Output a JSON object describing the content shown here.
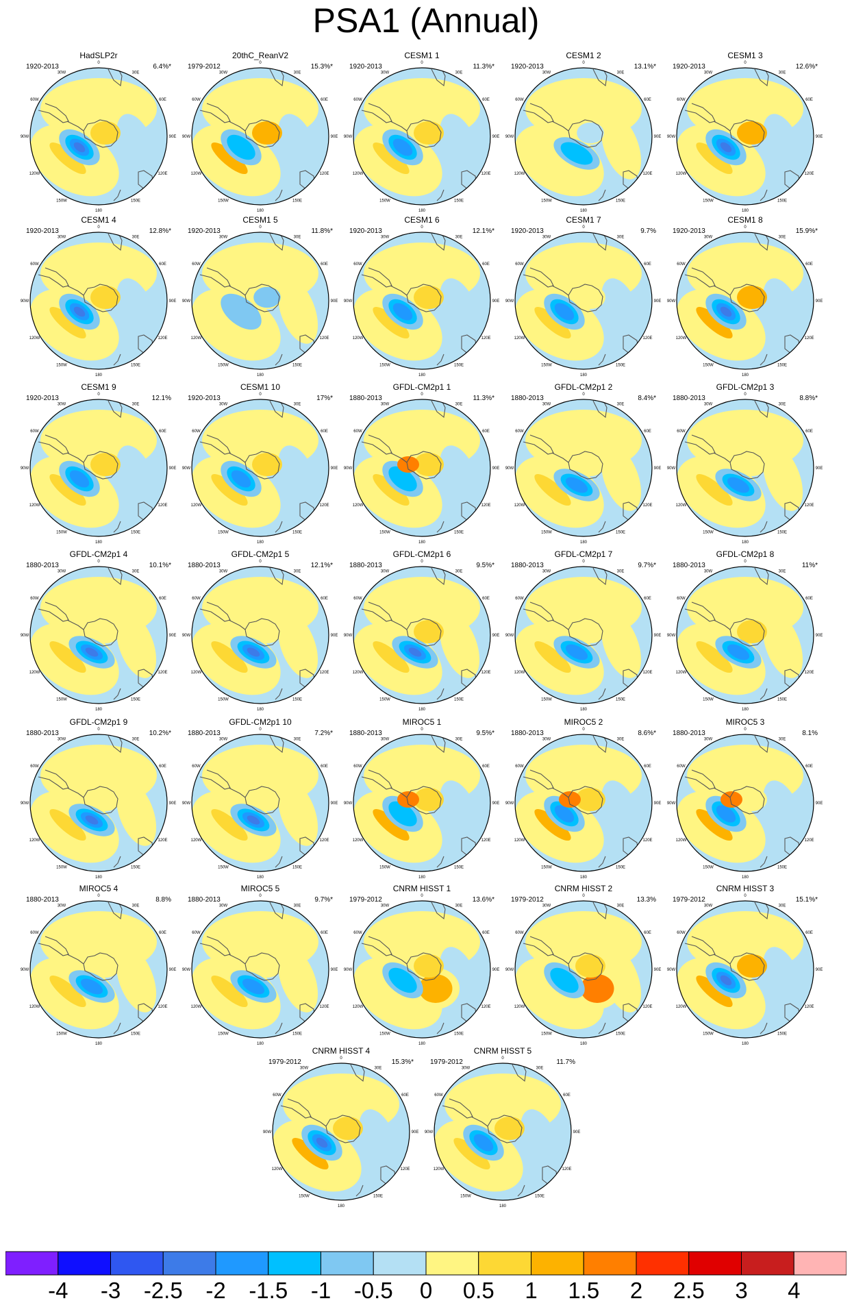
{
  "title": "PSA1 (Annual)",
  "colors": {
    "land_outline": "#555555",
    "map_border": "#000000"
  },
  "map_labels": {
    "lon_top": "0",
    "lon_30w": "30W",
    "lon_30e": "30E",
    "lon_60w": "60W",
    "lon_60e": "60E",
    "lon_90w": "90W",
    "lon_90e": "90E",
    "lon_120w": "120W",
    "lon_120e": "120E",
    "lon_150w": "150W",
    "lon_150e": "150E",
    "lon_bottom": "180"
  },
  "colorbar": {
    "colors": [
      "#7f1fff",
      "#0f0fff",
      "#2f57f1",
      "#3d7be8",
      "#1f99ff",
      "#00c0ff",
      "#7fc8f2",
      "#b4e0f4",
      "#fff582",
      "#fdd834",
      "#fdb200",
      "#ff7f00",
      "#ff3000",
      "#e00000",
      "#c81e1e",
      "#ffb4b4"
    ],
    "labels": [
      "-4",
      "-3",
      "-2.5",
      "-2",
      "-1.5",
      "-1",
      "-0.5",
      "0",
      "0.5",
      "1",
      "1.5",
      "2",
      "2.5",
      "3",
      "4"
    ]
  },
  "panels": [
    {
      "name": "HadSLP2r",
      "period": "1920-2013",
      "pct": "6.4%*",
      "pattern": [
        0,
        -2,
        0.8,
        0.7
      ]
    },
    {
      "name": "20thC_ReanV2",
      "period": "1979-2012",
      "pct": "15.3%*",
      "pattern": [
        0,
        -1.2,
        1.2,
        1.4
      ]
    },
    {
      "name": "CESM1 1",
      "period": "1920-2013",
      "pct": "11.3%*",
      "pattern": [
        0,
        -1.8,
        0.8,
        0.8
      ]
    },
    {
      "name": "CESM1 2",
      "period": "1920-2013",
      "pct": "13.1%*",
      "pattern": [
        1,
        -1.1,
        -0.3,
        -0.5
      ]
    },
    {
      "name": "CESM1 3",
      "period": "1920-2013",
      "pct": "12.6%*",
      "pattern": [
        0,
        -2,
        0.9,
        1.2
      ]
    },
    {
      "name": "CESM1 4",
      "period": "1920-2013",
      "pct": "12.8%*",
      "pattern": [
        0,
        -2,
        0.9,
        0.7
      ]
    },
    {
      "name": "CESM1 5",
      "period": "1920-2013",
      "pct": "11.8%*",
      "pattern": [
        3,
        -0.6,
        -0.4,
        -0.6
      ]
    },
    {
      "name": "CESM1 6",
      "period": "1920-2013",
      "pct": "12.1%*",
      "pattern": [
        0,
        -1.8,
        0.9,
        0.9
      ]
    },
    {
      "name": "CESM1 7",
      "period": "1920-2013",
      "pct": "9.7%",
      "pattern": [
        0,
        -1.8,
        0.6,
        0.3
      ]
    },
    {
      "name": "CESM1 8",
      "period": "1920-2013",
      "pct": "15.9%*",
      "pattern": [
        0,
        -2,
        1,
        1
      ]
    },
    {
      "name": "CESM1 9",
      "period": "1920-2013",
      "pct": "12.1%",
      "pattern": [
        0,
        -1.6,
        0.8,
        0.7
      ]
    },
    {
      "name": "CESM1 10",
      "period": "1920-2013",
      "pct": "17%*",
      "pattern": [
        0,
        -1.6,
        0.9,
        0.9
      ]
    },
    {
      "name": "GFDL-CM2p1 1",
      "period": "1880-2013",
      "pct": "11.3%*",
      "pattern": [
        2,
        -1.3,
        0.9,
        0.6
      ]
    },
    {
      "name": "GFDL-CM2p1 2",
      "period": "1880-2013",
      "pct": "8.4%*",
      "pattern": [
        1,
        -1.7,
        0.5,
        0.3
      ]
    },
    {
      "name": "GFDL-CM2p1 3",
      "period": "1880-2013",
      "pct": "8.8%*",
      "pattern": [
        1,
        -1.6,
        0.6,
        0.4
      ]
    },
    {
      "name": "GFDL-CM2p1 4",
      "period": "1880-2013",
      "pct": "10.1%*",
      "pattern": [
        1,
        -2.2,
        0.5,
        0.4
      ]
    },
    {
      "name": "GFDL-CM2p1 5",
      "period": "1880-2013",
      "pct": "12.1%*",
      "pattern": [
        1,
        -2,
        0.6,
        0.3
      ]
    },
    {
      "name": "GFDL-CM2p1 6",
      "period": "1880-2013",
      "pct": "9.5%*",
      "pattern": [
        1,
        -2.3,
        0.6,
        0.6
      ]
    },
    {
      "name": "GFDL-CM2p1 7",
      "period": "1880-2013",
      "pct": "9.7%*",
      "pattern": [
        1,
        -1.9,
        0.5,
        0.3
      ]
    },
    {
      "name": "GFDL-CM2p1 8",
      "period": "1880-2013",
      "pct": "11%*",
      "pattern": [
        1,
        -1.9,
        0.7,
        0.5
      ]
    },
    {
      "name": "GFDL-CM2p1 9",
      "period": "1880-2013",
      "pct": "10.2%*",
      "pattern": [
        1,
        -2.3,
        0.5,
        0.3
      ]
    },
    {
      "name": "GFDL-CM2p1 10",
      "period": "1880-2013",
      "pct": "7.2%*",
      "pattern": [
        1,
        -2.1,
        0.6,
        0.3
      ]
    },
    {
      "name": "MIROC5 1",
      "period": "1880-2013",
      "pct": "9.5%*",
      "pattern": [
        2,
        -1.4,
        1.3,
        0.6
      ]
    },
    {
      "name": "MIROC5 2",
      "period": "1880-2013",
      "pct": "8.6%*",
      "pattern": [
        2,
        -1.5,
        1.1,
        0.5
      ]
    },
    {
      "name": "MIROC5 3",
      "period": "1880-2013",
      "pct": "8.1%",
      "pattern": [
        2,
        -1.7,
        1.1,
        0.4
      ]
    },
    {
      "name": "MIROC5 4",
      "period": "1880-2013",
      "pct": "8.8%",
      "pattern": [
        1,
        -1.7,
        0.9,
        0.4
      ]
    },
    {
      "name": "MIROC5 5",
      "period": "1880-2013",
      "pct": "9.7%*",
      "pattern": [
        1,
        -1.6,
        0.9,
        0.4
      ]
    },
    {
      "name": "CNRM HISST 1",
      "period": "1979-2012",
      "pct": "13.6%*",
      "pattern": [
        4,
        -1.1,
        1,
        0.7
      ]
    },
    {
      "name": "CNRM HISST 2",
      "period": "1979-2012",
      "pct": "13.3%",
      "pattern": [
        5,
        -1.2,
        1.9,
        0.8
      ]
    },
    {
      "name": "CNRM HISST 3",
      "period": "1979-2012",
      "pct": "15.1%*",
      "pattern": [
        0,
        -2,
        1,
        1
      ]
    },
    {
      "name": "CNRM HISST 4",
      "period": "1979-2012",
      "pct": "15.3%*",
      "pattern": [
        6,
        -2.2,
        1.1,
        0.9
      ]
    },
    {
      "name": "CNRM HISST 5",
      "period": "1979-2012",
      "pct": "11.7%",
      "pattern": [
        0,
        -1.6,
        0.9,
        0.8
      ]
    }
  ]
}
